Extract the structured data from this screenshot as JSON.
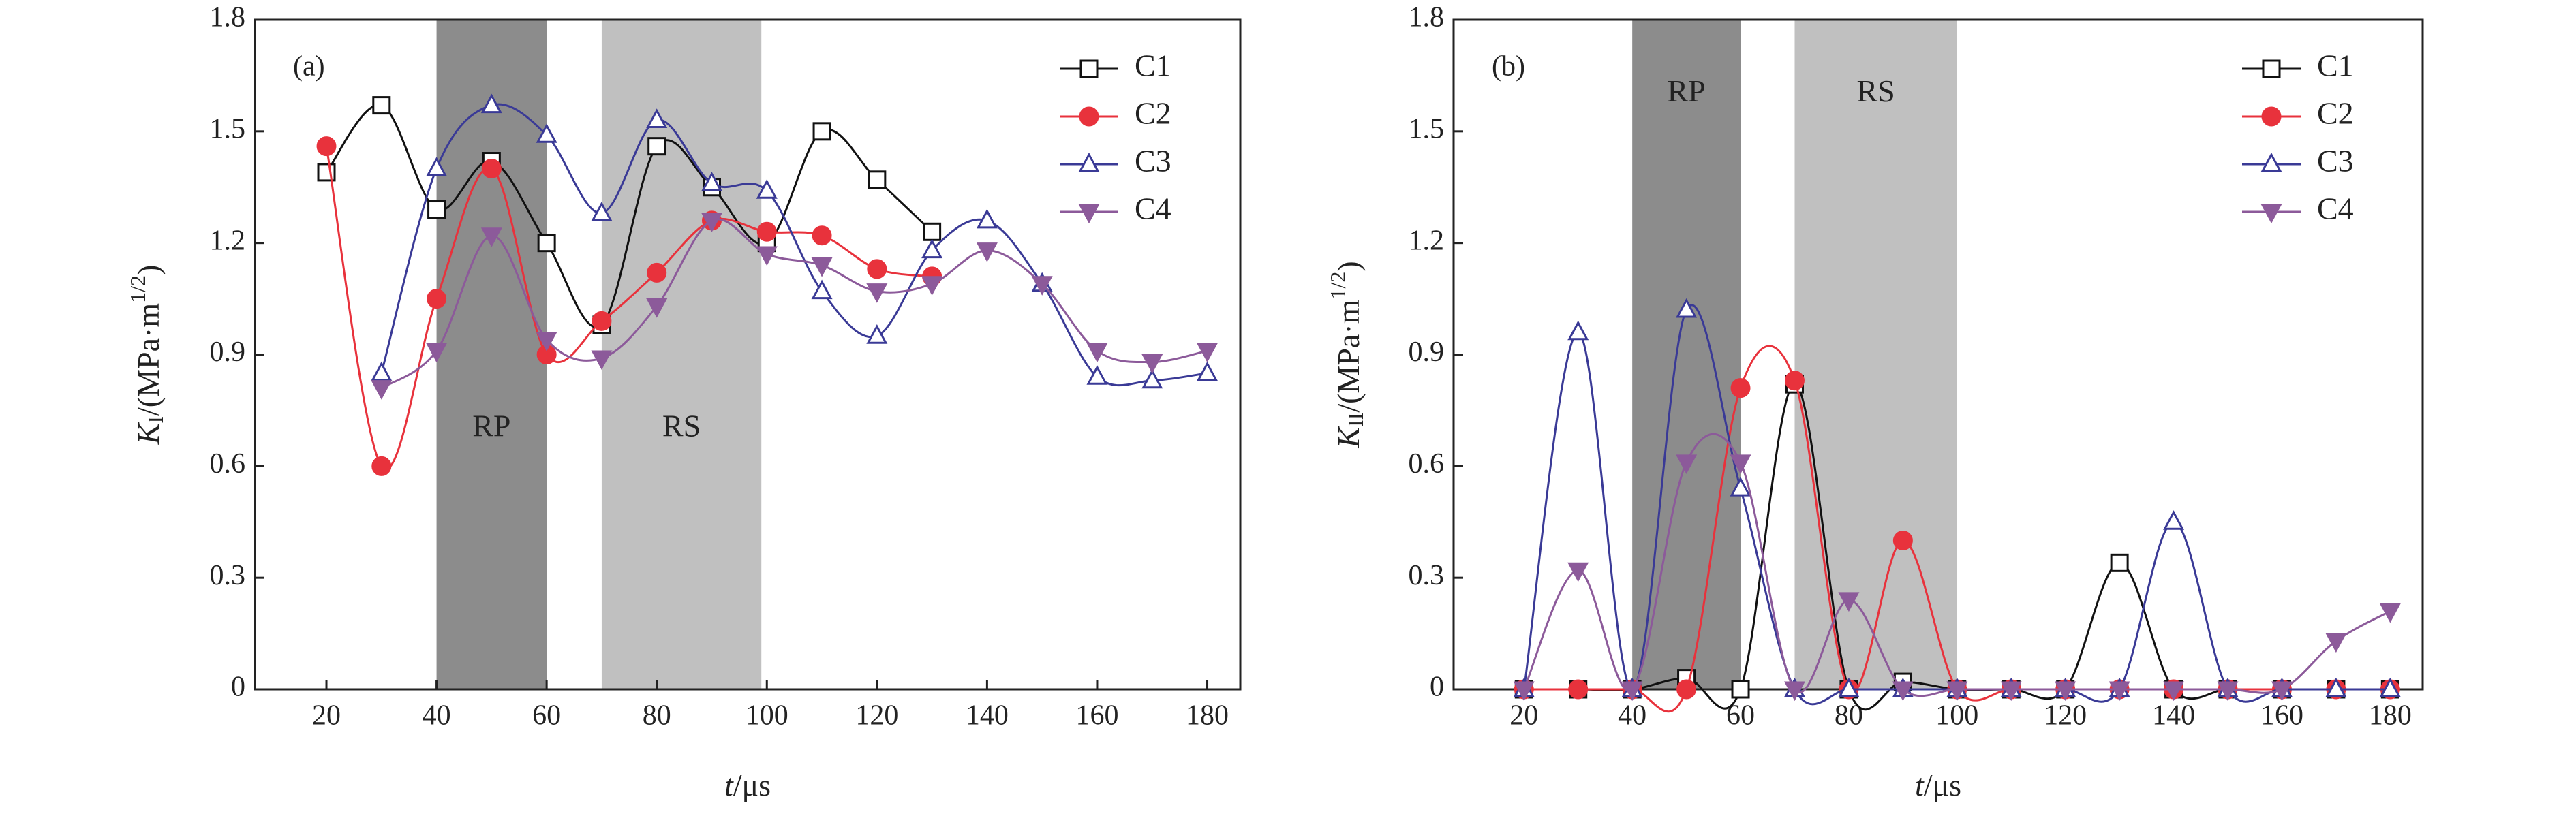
{
  "chart_data": [
    {
      "type": "line",
      "panel": "(a)",
      "xlabel": {
        "italic": "t",
        "rest": "/μs"
      },
      "ylabel": {
        "italic": "K",
        "sub": "I",
        "rest": "/(MPa·m",
        "sup": "1/2",
        "close": ")"
      },
      "x": [
        20,
        30,
        40,
        50,
        60,
        70,
        80,
        90,
        100,
        110,
        120,
        130,
        140,
        150,
        160,
        170,
        180
      ],
      "xlim": [
        7,
        186
      ],
      "xticks": [
        20,
        40,
        60,
        80,
        100,
        120,
        140,
        160,
        180
      ],
      "ylim": [
        0,
        1.8
      ],
      "yticks": [
        0,
        0.3,
        0.6,
        0.9,
        1.2,
        1.5,
        1.8
      ],
      "shades": [
        {
          "label": "RP",
          "range": [
            40,
            60
          ],
          "color": "#8c8c8c"
        },
        {
          "label": "RS",
          "range": [
            70,
            99
          ],
          "color": "#c0c0c0"
        }
      ],
      "series": [
        {
          "name": "C1",
          "color": "#111111",
          "marker": "square",
          "values": [
            1.39,
            1.57,
            1.29,
            1.42,
            1.2,
            0.98,
            1.46,
            1.35,
            1.2,
            1.5,
            1.37,
            1.23,
            null,
            null,
            null,
            null,
            null
          ]
        },
        {
          "name": "C2",
          "color": "#e8323c",
          "marker": "circle",
          "values": [
            1.46,
            0.6,
            1.05,
            1.4,
            0.9,
            0.99,
            1.12,
            1.26,
            1.23,
            1.22,
            1.13,
            1.11,
            null,
            null,
            null,
            null,
            null
          ]
        },
        {
          "name": "C3",
          "color": "#3a3a96",
          "marker": "triangle-up",
          "values": [
            null,
            0.85,
            1.4,
            1.57,
            1.49,
            1.28,
            1.53,
            1.36,
            1.34,
            1.07,
            0.95,
            1.18,
            1.26,
            1.09,
            0.84,
            0.83,
            0.85
          ]
        },
        {
          "name": "C4",
          "color": "#8c5a9a",
          "marker": "triangle-down",
          "values": [
            null,
            0.81,
            0.91,
            1.22,
            0.94,
            0.89,
            1.03,
            1.26,
            1.17,
            1.14,
            1.07,
            1.09,
            1.18,
            1.09,
            0.91,
            0.88,
            0.91
          ]
        }
      ]
    },
    {
      "type": "line",
      "panel": "(b)",
      "xlabel": {
        "italic": "t",
        "rest": "/μs"
      },
      "ylabel": {
        "italic": "K",
        "sub": "II",
        "rest": "/(MPa·m",
        "sup": "1/2",
        "close": ")"
      },
      "x": [
        20,
        30,
        40,
        50,
        60,
        70,
        80,
        90,
        100,
        110,
        120,
        130,
        140,
        150,
        160,
        170,
        180
      ],
      "xlim": [
        7,
        186
      ],
      "xticks": [
        20,
        40,
        60,
        80,
        100,
        120,
        140,
        160,
        180
      ],
      "ylim": [
        0,
        1.8
      ],
      "yticks": [
        0,
        0.3,
        0.6,
        0.9,
        1.2,
        1.5,
        1.8
      ],
      "shades": [
        {
          "label": "RP",
          "range": [
            40,
            60
          ],
          "color": "#8c8c8c"
        },
        {
          "label": "RS",
          "range": [
            70,
            100
          ],
          "color": "#c0c0c0"
        }
      ],
      "series": [
        {
          "name": "C1",
          "color": "#111111",
          "marker": "square",
          "values": [
            0,
            0,
            0,
            0.03,
            0,
            0.82,
            0,
            0.02,
            0,
            0,
            0,
            0.34,
            0,
            0,
            0,
            0,
            0
          ]
        },
        {
          "name": "C2",
          "color": "#e8323c",
          "marker": "circle",
          "values": [
            0,
            0,
            0,
            0,
            0.81,
            0.83,
            0,
            0.4,
            0,
            0,
            0,
            0,
            0,
            0,
            0,
            0,
            0
          ]
        },
        {
          "name": "C3",
          "color": "#3a3a96",
          "marker": "triangle-up",
          "values": [
            0,
            0.96,
            0,
            1.02,
            0.54,
            0,
            0,
            0,
            0,
            0,
            0,
            0,
            0.45,
            0,
            0,
            0,
            0
          ]
        },
        {
          "name": "C4",
          "color": "#8c5a9a",
          "marker": "triangle-down",
          "values": [
            0,
            0.32,
            0,
            0.61,
            0.61,
            0,
            0.24,
            0,
            0,
            0,
            0,
            0,
            0,
            0,
            0,
            0.13,
            0.21
          ]
        }
      ]
    }
  ]
}
